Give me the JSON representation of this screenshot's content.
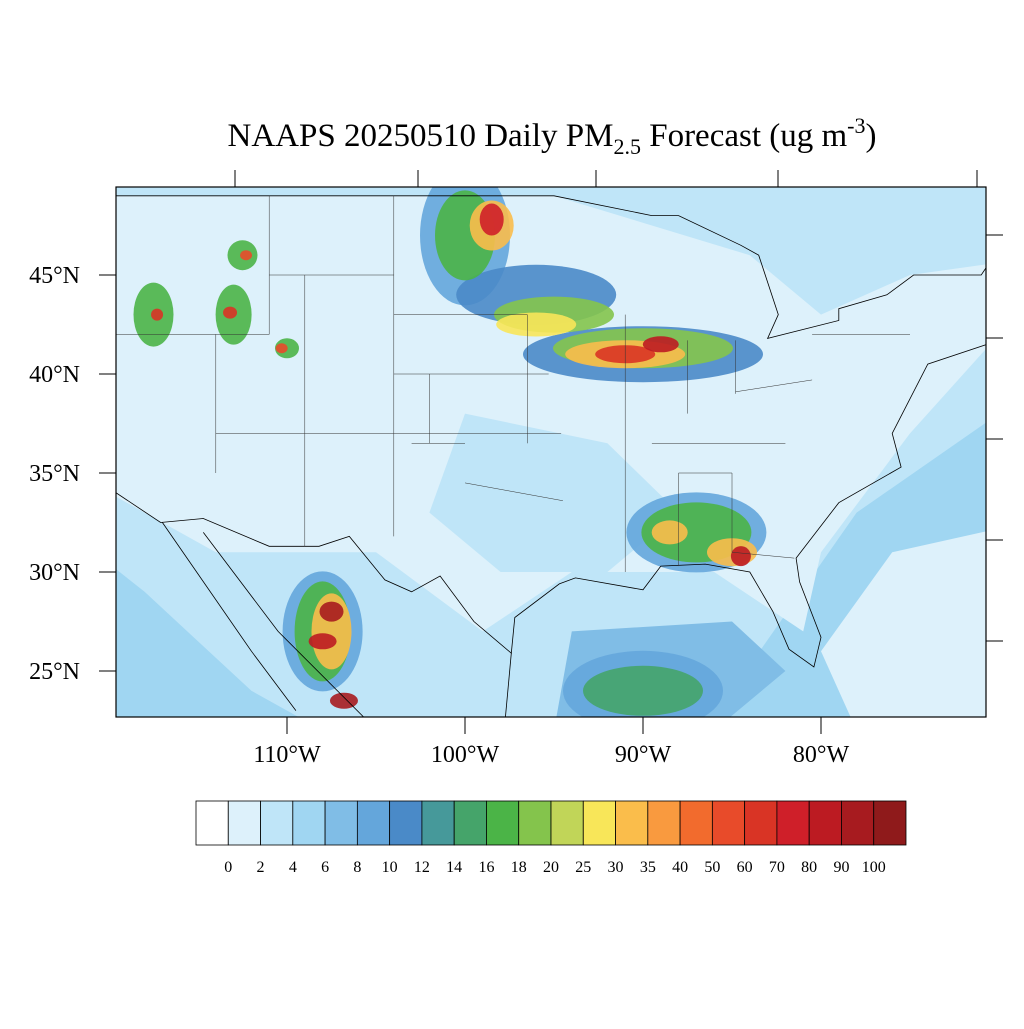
{
  "title": {
    "main": "NAAPS 20250510 Daily PM",
    "subscript": "2.5",
    "middle": " Forecast (ug m",
    "superscript": "-3",
    "end": ")"
  },
  "map": {
    "lat_labels": [
      "45°N",
      "40°N",
      "35°N",
      "30°N",
      "25°N"
    ],
    "lon_labels": [
      "110°W",
      "100°W",
      "90°W",
      "80°W"
    ]
  },
  "colorbar": {
    "levels": [
      0,
      2,
      4,
      6,
      8,
      10,
      12,
      14,
      16,
      18,
      20,
      25,
      30,
      35,
      40,
      50,
      60,
      70,
      80,
      90,
      100
    ],
    "colors": [
      "#ffffff",
      "#ddf1fb",
      "#bfe5f8",
      "#a0d6f2",
      "#80bde6",
      "#64a6db",
      "#4a8ac8",
      "#46999a",
      "#45a46a",
      "#4bb447",
      "#84c44c",
      "#c1d558",
      "#f8e659",
      "#fabd4b",
      "#f99a3f",
      "#f26b2d",
      "#e84b2a",
      "#d93425",
      "#cf1f29",
      "#bc1b22",
      "#a71b1f",
      "#8f1a1b"
    ]
  }
}
